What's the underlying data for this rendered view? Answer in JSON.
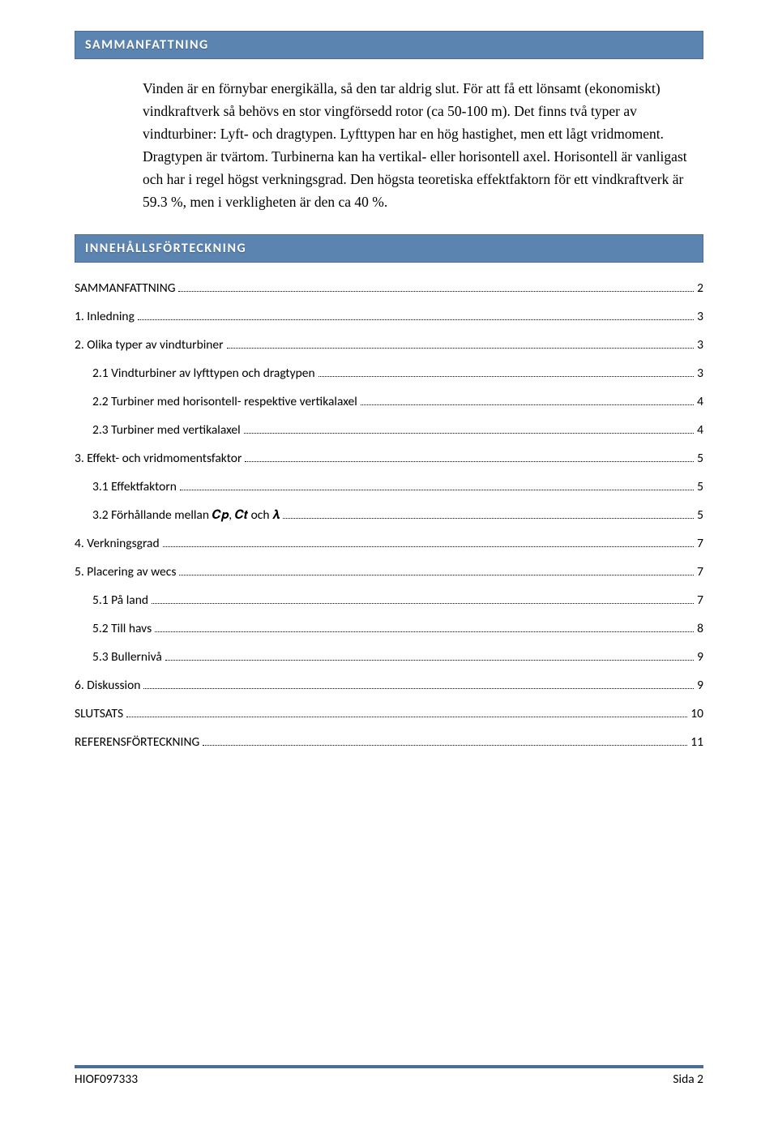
{
  "colors": {
    "bar_bg": "#5b84b1",
    "bar_border": "#4a6e98",
    "bar_text": "#ffffff",
    "body_text": "#000000",
    "page_bg": "#ffffff"
  },
  "typography": {
    "body_font": "Times New Roman",
    "ui_font": "Calibri",
    "body_fontsize_pt": 12,
    "heading_fontsize_pt": 12,
    "toc_fontsize_pt": 11
  },
  "sections": {
    "summary_title": "SAMMANFATTNING",
    "summary_body": "Vinden är en förnybar energikälla, så den tar aldrig slut. För att få ett lönsamt (ekonomiskt) vindkraftverk så behövs en stor vingförsedd rotor (ca 50-100 m). Det finns två typer av vindturbiner: Lyft- och dragtypen. Lyfttypen har en hög hastighet, men ett lågt vridmoment. Dragtypen är tvärtom. Turbinerna kan ha vertikal- eller horisontell axel. Horisontell är vanligast och har i regel högst verkningsgrad. Den högsta teoretiska effektfaktorn för ett vindkraftverk är 59.3 %, men i verkligheten är den ca 40 %.",
    "toc_title": "INNEHÅLLSFÖRTECKNING"
  },
  "toc": [
    {
      "label": "SAMMANFATTNING",
      "page": "2",
      "level": 1
    },
    {
      "label": "1. Inledning",
      "page": "3",
      "level": 1
    },
    {
      "label": "2. Olika typer av vindturbiner",
      "page": "3",
      "level": 1
    },
    {
      "label": "2.1 Vindturbiner av lyfttypen och dragtypen",
      "page": "3",
      "level": 2
    },
    {
      "label": "2.2 Turbiner med horisontell- respektive vertikalaxel",
      "page": "4",
      "level": 2
    },
    {
      "label": "2.3 Turbiner med vertikalaxel",
      "page": "4",
      "level": 2
    },
    {
      "label": "3. Effekt- och vridmomentsfaktor",
      "page": "5",
      "level": 1
    },
    {
      "label": "3.1 Effektfaktorn",
      "page": "5",
      "level": 2
    },
    {
      "label": "3.2 Förhållande mellan 𝑪𝒑, 𝑪𝒕 och 𝝀",
      "page": "5",
      "level": 2
    },
    {
      "label": "4. Verkningsgrad",
      "page": "7",
      "level": 1
    },
    {
      "label": "5. Placering av wecs",
      "page": "7",
      "level": 1
    },
    {
      "label": "5.1 På land",
      "page": "7",
      "level": 2
    },
    {
      "label": "5.2 Till havs",
      "page": "8",
      "level": 2
    },
    {
      "label": "5.3 Bullernivå",
      "page": "9",
      "level": 2
    },
    {
      "label": "6. Diskussion",
      "page": "9",
      "level": 1
    },
    {
      "label": "SLUTSATS",
      "page": "10",
      "level": 1
    },
    {
      "label": "REFERENSFÖRTECKNING",
      "page": "11",
      "level": 1
    }
  ],
  "footer": {
    "left": "HIOF097333",
    "right": "Sida 2"
  }
}
